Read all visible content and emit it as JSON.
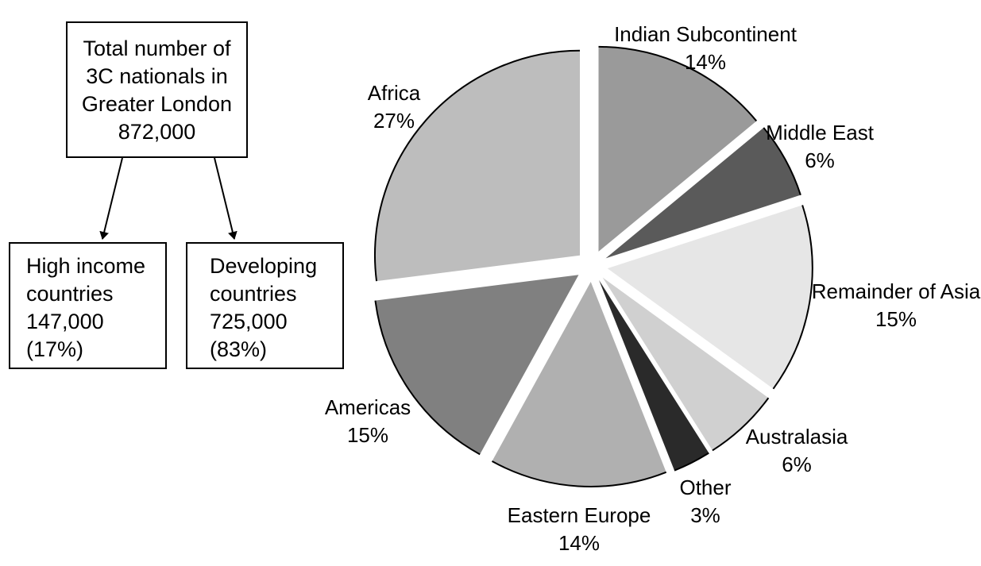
{
  "boxes": {
    "total": {
      "lines": [
        "Total number of",
        "3C nationals in",
        "Greater London",
        "872,000"
      ]
    },
    "high_income": {
      "lines": [
        "High income",
        "countries",
        "147,000",
        "(17%)"
      ]
    },
    "developing": {
      "lines": [
        "Developing",
        "countries",
        "725,000",
        "(83%)"
      ]
    }
  },
  "chart_data": {
    "type": "pie",
    "title": "",
    "slices": [
      {
        "name": "Indian Subcontinent",
        "label": "14%",
        "value": 14,
        "color": "#9a9a9a"
      },
      {
        "name": "Middle East",
        "label": "6%",
        "value": 6,
        "color": "#5a5a5a"
      },
      {
        "name": "Remainder of Asia",
        "label": "15%",
        "value": 15,
        "color": "#e6e6e6"
      },
      {
        "name": "Australasia",
        "label": "6%",
        "value": 6,
        "color": "#d0d0d0"
      },
      {
        "name": "Other",
        "label": "3%",
        "value": 3,
        "color": "#2a2a2a"
      },
      {
        "name": "Eastern Europe",
        "label": "14%",
        "value": 14,
        "color": "#b0b0b0"
      },
      {
        "name": "Americas",
        "label": "15%",
        "value": 15,
        "color": "#808080"
      },
      {
        "name": "Africa",
        "label": "27%",
        "value": 27,
        "color": "#bdbdbd"
      }
    ]
  }
}
